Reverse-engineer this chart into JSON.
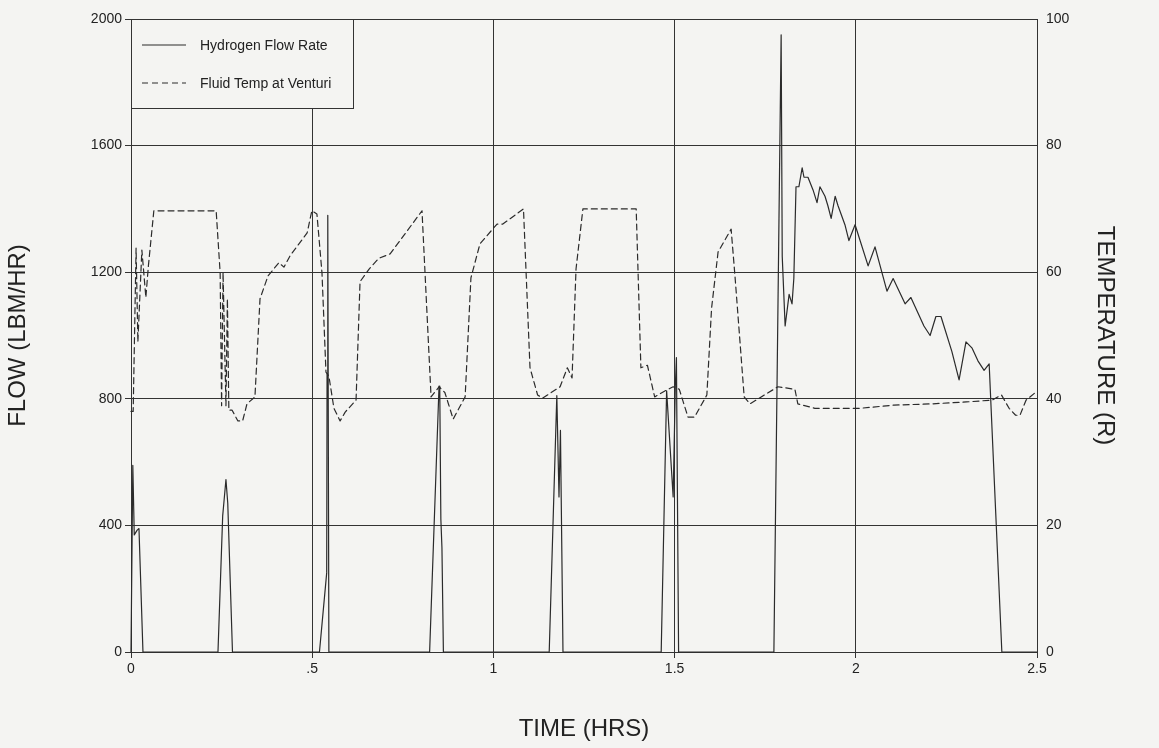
{
  "chart_data": {
    "type": "line",
    "xlabel": "TIME (HRS)",
    "ylabel": "FLOW (LBM/HR)",
    "y2label": "TEMPERATURE (R)",
    "xlim": [
      0,
      2.5
    ],
    "xticks": [
      0,
      {
        "value": 0.5,
        "label": ".5"
      },
      1,
      1.5,
      2,
      2.5
    ],
    "ylim": [
      0,
      2000
    ],
    "yticks": [
      0,
      400,
      800,
      1200,
      1600,
      2000
    ],
    "y2lim": [
      0,
      100
    ],
    "y2ticks": [
      0,
      20,
      40,
      60,
      80,
      100
    ],
    "grid": true,
    "legend": "top left",
    "marker": "none",
    "series": [
      {
        "name": "Hydrogen Flow Rate",
        "color": "#2b2b2b",
        "line_style": "solid",
        "x": [
          0,
          0.005,
          0.009,
          0.017,
          0.022,
          0.033,
          0.24,
          0.253,
          0.262,
          0.267,
          0.28,
          0.52,
          0.54,
          0.541,
          0.543,
          0.546,
          0.824,
          0.85,
          0.852,
          0.855,
          0.858,
          0.862,
          1.154,
          1.175,
          1.181,
          1.185,
          1.192,
          1.463,
          1.478,
          1.496,
          1.502,
          1.505,
          1.511,
          1.774,
          1.794,
          1.797,
          1.805,
          1.816,
          1.824,
          1.829,
          1.835,
          1.843,
          1.852,
          1.857,
          1.868,
          1.882,
          1.893,
          1.901,
          1.915,
          1.923,
          1.932,
          1.943,
          1.951,
          1.97,
          1.981,
          1.998,
          2.034,
          2.053,
          2.086,
          2.103,
          2.136,
          2.152,
          2.188,
          2.205,
          2.221,
          2.235,
          2.265,
          2.285,
          2.304,
          2.321,
          2.337,
          2.354,
          2.368,
          2.403,
          2.5
        ],
        "values": [
          0,
          590,
          370,
          385,
          390,
          0,
          0,
          430,
          545,
          470,
          0,
          0,
          250,
          880,
          1380,
          0,
          0,
          840,
          830,
          420,
          330,
          0,
          0,
          810,
          490,
          700,
          0,
          0,
          825,
          490,
          840,
          930,
          0,
          0,
          1950,
          1250,
          1030,
          1130,
          1100,
          1180,
          1470,
          1470,
          1530,
          1500,
          1500,
          1460,
          1420,
          1470,
          1440,
          1410,
          1370,
          1440,
          1410,
          1350,
          1300,
          1350,
          1220,
          1280,
          1140,
          1180,
          1100,
          1120,
          1030,
          1000,
          1060,
          1060,
          950,
          860,
          980,
          960,
          920,
          890,
          910,
          0,
          0
        ]
      },
      {
        "name": "Fluid Temp at Venturi",
        "color": "#2b2b2b",
        "line_style": "dashed",
        "axis": "y2",
        "x": [
          0,
          0.006,
          0.014,
          0.019,
          0.03,
          0.041,
          0.048,
          0.063,
          0.235,
          0.246,
          0.25,
          0.254,
          0.262,
          0.266,
          0.27,
          0.279,
          0.295,
          0.308,
          0.32,
          0.342,
          0.356,
          0.378,
          0.408,
          0.422,
          0.439,
          0.486,
          0.499,
          0.513,
          0.527,
          0.538,
          0.546,
          0.56,
          0.577,
          0.591,
          0.621,
          0.632,
          0.657,
          0.684,
          0.715,
          0.803,
          0.828,
          0.85,
          0.866,
          0.889,
          0.922,
          0.938,
          0.963,
          1.01,
          1.026,
          1.083,
          1.101,
          1.122,
          1.136,
          1.184,
          1.204,
          1.217,
          1.228,
          1.247,
          1.394,
          1.407,
          1.425,
          1.445,
          1.472,
          1.496,
          1.513,
          1.537,
          1.555,
          1.589,
          1.602,
          1.62,
          1.656,
          1.667,
          1.692,
          1.708,
          1.785,
          1.832,
          1.84,
          1.887,
          2.012,
          2.105,
          2.21,
          2.305,
          2.376,
          2.402,
          2.423,
          2.441,
          2.453,
          2.47,
          2.5
        ],
        "values": [
          38,
          38,
          63.8,
          49,
          63.5,
          56,
          61,
          69.7,
          69.7,
          59.9,
          38.9,
          60,
          38.9,
          55.8,
          38.2,
          38.2,
          36.5,
          36.5,
          39.2,
          40.3,
          55.8,
          59.4,
          61.5,
          60.8,
          62.6,
          66.2,
          69.7,
          69.2,
          59.9,
          44.2,
          43.6,
          38.5,
          36.5,
          37.9,
          39.8,
          58.5,
          60.5,
          62.2,
          62.9,
          69.7,
          40.3,
          41.9,
          41,
          36.8,
          40.3,
          59.1,
          64.5,
          67.6,
          67.6,
          70,
          44.9,
          40.6,
          40.1,
          41.9,
          44.9,
          43.3,
          60.5,
          70,
          70,
          44.9,
          45.3,
          40.3,
          41.2,
          41.9,
          41.5,
          37.1,
          37.1,
          40.6,
          54.3,
          63.2,
          66.8,
          59.1,
          40.3,
          39.2,
          41.9,
          41.5,
          39.2,
          38.5,
          38.5,
          39,
          39.2,
          39.5,
          39.8,
          40.6,
          38.5,
          37.4,
          37.4,
          39.8,
          41.2
        ]
      }
    ]
  }
}
